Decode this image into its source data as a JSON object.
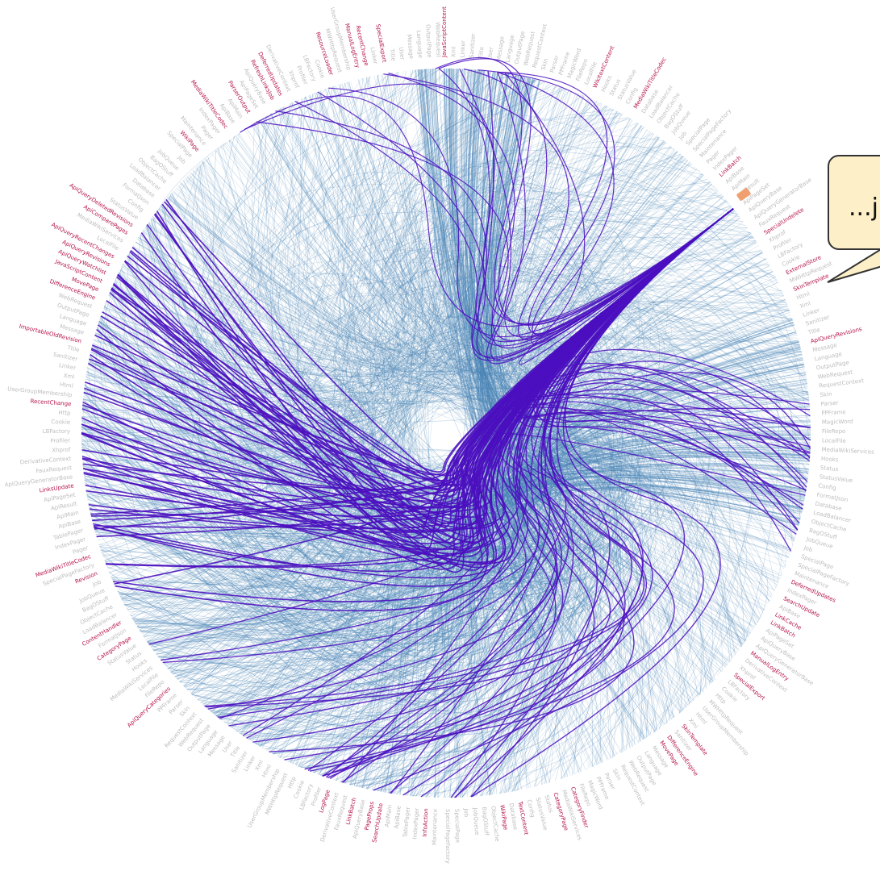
{
  "diagram": {
    "type": "hierarchical-edge-bundling",
    "colors": {
      "edge": "#4682b4",
      "highlight_edge": "#4b0fbf",
      "label_default": "#bdbdbd",
      "label_highlight": "#b5154b",
      "selected_node": "#f0a070",
      "ring": "#ffffff"
    },
    "highlighted_labels": [
      "JavaScriptContent",
      "ApiQueryWatchlist",
      "ApiQueryRevisions",
      "ApiQueryRecentChanges",
      "ApiQueryAllRevisions",
      "ApiQueryCategories",
      "ApiComparePages",
      "ApiQueryDeletedRevisions",
      "ApiQueryInfo",
      "ApiRevisionDelete",
      "CategoryFinder",
      "CategoryViewer",
      "CategoryPage",
      "ClearUserWatchlistJob",
      "ContentHandler",
      "CssContent",
      "TextContent",
      "WikitextContent",
      "WikiPage",
      "WikiRevision",
      "Revision",
      "RevisionStore",
      "MediaWikiTitleCodec",
      "MediaHandlerFactory",
      "HTMLForm",
      "ParserOutput",
      "InfoAction",
      "RawAction",
      "RefreshLinksJob",
      "DeferredUpdates",
      "LinksUpdate",
      "SearchUpdate",
      "PageProps",
      "LinkCache",
      "LinkBatch",
      "ResourceLoader",
      "ChangeTags",
      "LogPage",
      "ManualLogEntry",
      "RecentChange",
      "UploadBase",
      "SpecialExport",
      "SpecialUndelete",
      "PageArchive",
      "PageDataRequestHandler",
      "QueryPage",
      "ImportableOldRevision",
      "ExternalStore",
      "ColourCssFormatter",
      "SkinTemplate",
      "EditPage",
      "DifferenceEngine",
      "MovePage"
    ],
    "gray_labels": [
      "Html",
      "Xml",
      "Linker",
      "Sanitizer",
      "Title",
      "User",
      "Message",
      "Language",
      "OutputPage",
      "WebRequest",
      "RequestContext",
      "Skin",
      "Parser",
      "PPFrame",
      "MagicWord",
      "FileRepo",
      "LocalFile",
      "MediaWikiServices",
      "Hooks",
      "Status",
      "StatusValue",
      "Config",
      "FormatJson",
      "Database",
      "LoadBalancer",
      "ObjectCache",
      "BagOStuff",
      "JobQueue",
      "Job",
      "SpecialPage",
      "SpecialPageFactory",
      "Maintenance",
      "Pager",
      "IndexPager",
      "TablePager",
      "ApiBase",
      "ApiMain",
      "ApiResult",
      "ApiPageSet",
      "ApiQueryBase",
      "ApiQueryGeneratorBase",
      "FauxRequest",
      "DerivativeContext",
      "Xhprof",
      "Profiler",
      "LBFactory",
      "Cookie",
      "Http",
      "MWHttpRequest",
      "UserGroupMembership"
    ],
    "tooltip": {
      "text": "...j"
    }
  }
}
